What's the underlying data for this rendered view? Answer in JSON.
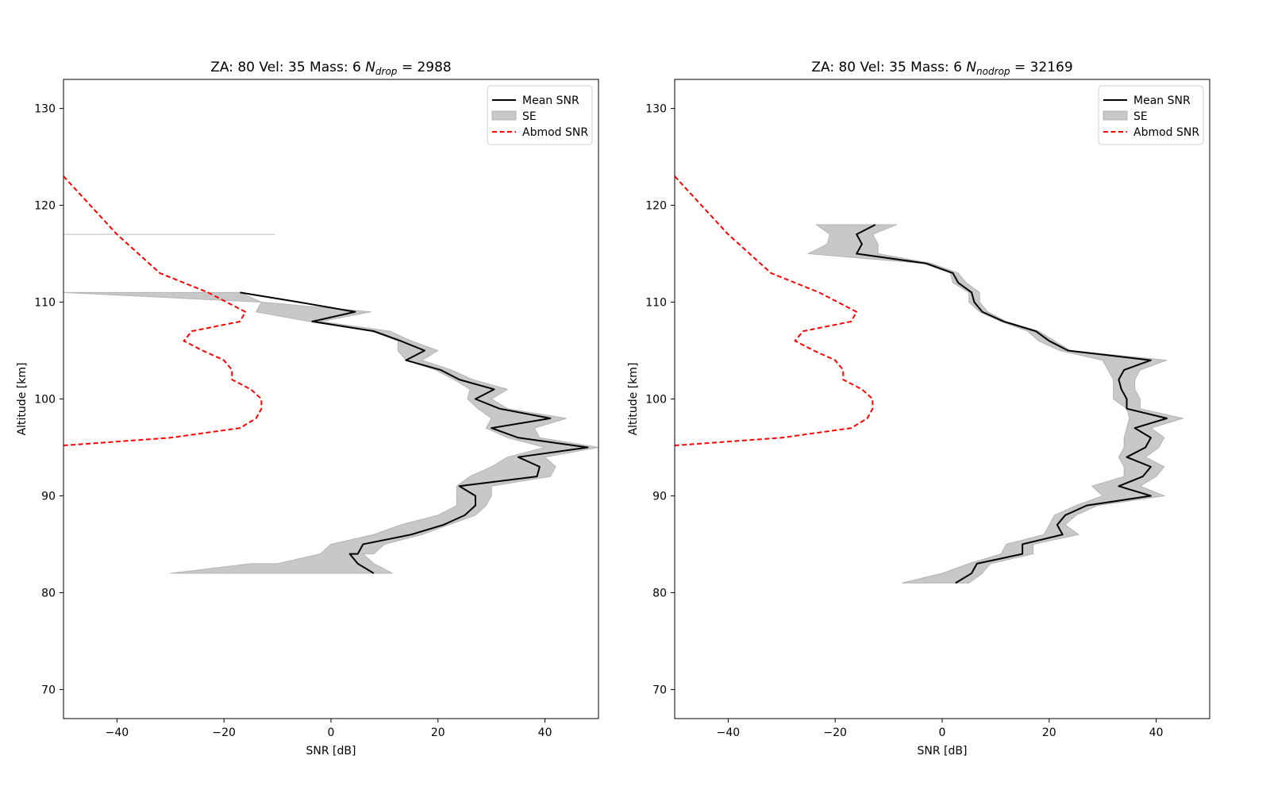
{
  "chart_data": [
    {
      "type": "line",
      "title": {
        "prefix": "ZA: 80 Vel: 35 Mass: 6 ",
        "sym": "N",
        "sub": "drop",
        "suffix": " = 2988"
      },
      "xlabel": "SNR [dB]",
      "ylabel": "Altitude [km]",
      "xlim": [
        -50,
        50
      ],
      "ylim": [
        67,
        133
      ],
      "xticks": [
        -40,
        -20,
        0,
        20,
        40
      ],
      "xtick_labels": [
        "−40",
        "−20",
        "0",
        "20",
        "40"
      ],
      "yticks": [
        70,
        80,
        90,
        100,
        110,
        120,
        130
      ],
      "ytick_labels": [
        "70",
        "80",
        "90",
        "100",
        "110",
        "120",
        "130"
      ],
      "legend": {
        "placement": "top-right",
        "entries": [
          "Mean SNR",
          "SE",
          "Abmod SNR"
        ]
      },
      "grid": false,
      "extra_hline": {
        "y": 117,
        "x": [
          -50,
          -10.5
        ],
        "color": "#c8c8c8"
      },
      "series": [
        {
          "name": "Mean SNR",
          "kind": "line",
          "color": "#000000",
          "points": [
            [
              -17,
              111
            ],
            [
              -6,
              110
            ],
            [
              4.5,
              109
            ],
            [
              -3.5,
              108
            ],
            [
              8,
              107
            ],
            [
              13,
              106
            ],
            [
              17.5,
              105
            ],
            [
              14,
              104
            ],
            [
              20.5,
              103
            ],
            [
              24,
              102
            ],
            [
              30.5,
              101
            ],
            [
              27,
              100
            ],
            [
              31.5,
              99
            ],
            [
              41,
              98
            ],
            [
              30,
              97
            ],
            [
              35,
              96
            ],
            [
              48,
              95
            ],
            [
              35,
              94
            ],
            [
              39,
              93
            ],
            [
              38.5,
              92
            ],
            [
              24,
              91
            ],
            [
              27,
              90
            ],
            [
              27,
              89
            ],
            [
              25,
              88
            ],
            [
              21,
              87
            ],
            [
              15,
              86
            ],
            [
              6,
              85
            ],
            [
              5,
              84
            ],
            [
              3.5,
              84
            ],
            [
              5,
              83
            ],
            [
              8,
              82
            ]
          ]
        },
        {
          "name": "SE",
          "kind": "band",
          "color": "#c8c8c8",
          "lower": [
            [
              -50,
              111
            ],
            [
              -13,
              110
            ],
            [
              -14,
              109
            ],
            [
              -4,
              108
            ],
            [
              7.5,
              107
            ],
            [
              12.5,
              106
            ],
            [
              12.5,
              105
            ],
            [
              14,
              104
            ],
            [
              19.5,
              103
            ],
            [
              23,
              102
            ],
            [
              26,
              101
            ],
            [
              25.5,
              100
            ],
            [
              27.5,
              99
            ],
            [
              30,
              98
            ],
            [
              29,
              97
            ],
            [
              33,
              96
            ],
            [
              40,
              95
            ],
            [
              33,
              94
            ],
            [
              30,
              93
            ],
            [
              26,
              92
            ],
            [
              23.5,
              91
            ],
            [
              23.5,
              90
            ],
            [
              23.5,
              89
            ],
            [
              20,
              88
            ],
            [
              13,
              87
            ],
            [
              8,
              86
            ],
            [
              0,
              85
            ],
            [
              -2,
              84
            ],
            [
              -10,
              83
            ],
            [
              -15,
              83
            ],
            [
              -30,
              82
            ]
          ],
          "upper": [
            [
              -17,
              111
            ],
            [
              -13,
              110
            ],
            [
              7.5,
              109
            ],
            [
              -2,
              108
            ],
            [
              11,
              107
            ],
            [
              15,
              106
            ],
            [
              20,
              105
            ],
            [
              17,
              104
            ],
            [
              22.5,
              103
            ],
            [
              26.5,
              102
            ],
            [
              33,
              101
            ],
            [
              30,
              100
            ],
            [
              33,
              99
            ],
            [
              44,
              98
            ],
            [
              38,
              97
            ],
            [
              39,
              96
            ],
            [
              50,
              95
            ],
            [
              40,
              94
            ],
            [
              42,
              93
            ],
            [
              41,
              92
            ],
            [
              30,
              91
            ],
            [
              30,
              90
            ],
            [
              29,
              89
            ],
            [
              27,
              88
            ],
            [
              22,
              87
            ],
            [
              17,
              86
            ],
            [
              10,
              85
            ],
            [
              8,
              84
            ],
            [
              6,
              84
            ],
            [
              8,
              83
            ],
            [
              11.5,
              82
            ]
          ]
        },
        {
          "name": "Abmod SNR",
          "kind": "line",
          "dashed": true,
          "color": "#ff0000",
          "points": [
            [
              -50,
              123
            ],
            [
              -40,
              117
            ],
            [
              -32,
              113
            ],
            [
              -23,
              111
            ],
            [
              -16,
              109
            ],
            [
              -17,
              108
            ],
            [
              -26,
              107
            ],
            [
              -27.5,
              106
            ],
            [
              -24,
              105
            ],
            [
              -20,
              104
            ],
            [
              -18.5,
              103
            ],
            [
              -18.5,
              102
            ],
            [
              -15,
              101
            ],
            [
              -13,
              100
            ],
            [
              -13,
              99
            ],
            [
              -14,
              98
            ],
            [
              -17,
              97
            ],
            [
              -30,
              96
            ],
            [
              -50,
              95.2
            ]
          ]
        }
      ]
    },
    {
      "type": "line",
      "title": {
        "prefix": "ZA: 80 Vel: 35 Mass: 6 ",
        "sym": "N",
        "sub": "nodrop",
        "suffix": " = 32169"
      },
      "xlabel": "SNR [dB]",
      "ylabel": "Altitude [km]",
      "xlim": [
        -50,
        50
      ],
      "ylim": [
        67,
        133
      ],
      "xticks": [
        -40,
        -20,
        0,
        20,
        40
      ],
      "xtick_labels": [
        "−40",
        "−20",
        "0",
        "20",
        "40"
      ],
      "yticks": [
        70,
        80,
        90,
        100,
        110,
        120,
        130
      ],
      "ytick_labels": [
        "70",
        "80",
        "90",
        "100",
        "110",
        "120",
        "130"
      ],
      "legend": {
        "placement": "top-right",
        "entries": [
          "Mean SNR",
          "SE",
          "Abmod SNR"
        ]
      },
      "grid": false,
      "series": [
        {
          "name": "Mean SNR",
          "kind": "line",
          "color": "#000000",
          "points": [
            [
              -12.5,
              118
            ],
            [
              -16,
              117
            ],
            [
              -15,
              116
            ],
            [
              -16,
              115
            ],
            [
              -3,
              114
            ],
            [
              2,
              113
            ],
            [
              3,
              112
            ],
            [
              5.5,
              111
            ],
            [
              6,
              110
            ],
            [
              7.5,
              109
            ],
            [
              11.5,
              108
            ],
            [
              17.5,
              107
            ],
            [
              20,
              106
            ],
            [
              23.5,
              105
            ],
            [
              39,
              104
            ],
            [
              34,
              103
            ],
            [
              33,
              102
            ],
            [
              33.5,
              101
            ],
            [
              34.5,
              100
            ],
            [
              34.5,
              99
            ],
            [
              42,
              98
            ],
            [
              36,
              97
            ],
            [
              39,
              96
            ],
            [
              38,
              95
            ],
            [
              34.5,
              94
            ],
            [
              39,
              93
            ],
            [
              37.5,
              92
            ],
            [
              33,
              91
            ],
            [
              39,
              90
            ],
            [
              27,
              89
            ],
            [
              23,
              88
            ],
            [
              21.5,
              87
            ],
            [
              22.5,
              86
            ],
            [
              15,
              85
            ],
            [
              15,
              84
            ],
            [
              6.5,
              83
            ],
            [
              5.5,
              82
            ],
            [
              2.5,
              81
            ]
          ]
        },
        {
          "name": "SE",
          "kind": "band",
          "color": "#c8c8c8",
          "lower": [
            [
              -23.5,
              118
            ],
            [
              -21,
              117
            ],
            [
              -21.5,
              116
            ],
            [
              -25,
              115
            ],
            [
              -3.5,
              114
            ],
            [
              1.5,
              113
            ],
            [
              2,
              112
            ],
            [
              5,
              111
            ],
            [
              5,
              110
            ],
            [
              7,
              109
            ],
            [
              11,
              108
            ],
            [
              16,
              107
            ],
            [
              18,
              106
            ],
            [
              22,
              105
            ],
            [
              30,
              104
            ],
            [
              31,
              103
            ],
            [
              32,
              102
            ],
            [
              32,
              101
            ],
            [
              32,
              100
            ],
            [
              34.5,
              99
            ],
            [
              35,
              98
            ],
            [
              34.5,
              97
            ],
            [
              34,
              96
            ],
            [
              34,
              95
            ],
            [
              33,
              94
            ],
            [
              34,
              93
            ],
            [
              34,
              92
            ],
            [
              28,
              91
            ],
            [
              30,
              90
            ],
            [
              25,
              89
            ],
            [
              21,
              88
            ],
            [
              20,
              87
            ],
            [
              19,
              86
            ],
            [
              12,
              85
            ],
            [
              11,
              84
            ],
            [
              5,
              83
            ],
            [
              0,
              82
            ],
            [
              -7.5,
              81
            ]
          ],
          "upper": [
            [
              -8.5,
              118
            ],
            [
              -13,
              117
            ],
            [
              -12,
              116
            ],
            [
              -12,
              115
            ],
            [
              -2,
              114
            ],
            [
              3,
              113
            ],
            [
              4.5,
              112
            ],
            [
              7,
              111
            ],
            [
              7,
              110
            ],
            [
              8.5,
              109
            ],
            [
              12,
              108
            ],
            [
              18,
              107
            ],
            [
              21,
              106
            ],
            [
              24,
              105
            ],
            [
              42,
              104
            ],
            [
              37,
              103
            ],
            [
              36,
              102
            ],
            [
              36,
              101
            ],
            [
              37,
              100
            ],
            [
              37,
              99
            ],
            [
              45,
              98
            ],
            [
              39,
              97
            ],
            [
              41.5,
              96
            ],
            [
              40.5,
              95
            ],
            [
              38,
              94
            ],
            [
              41.5,
              93
            ],
            [
              40,
              92
            ],
            [
              37,
              91
            ],
            [
              41.5,
              90
            ],
            [
              29,
              89
            ],
            [
              25,
              88
            ],
            [
              23,
              87
            ],
            [
              25.5,
              86
            ],
            [
              17,
              85
            ],
            [
              17,
              84
            ],
            [
              9,
              83
            ],
            [
              7.5,
              82
            ],
            [
              5,
              81
            ]
          ]
        },
        {
          "name": "Abmod SNR",
          "kind": "line",
          "dashed": true,
          "color": "#ff0000",
          "points": [
            [
              -50,
              123
            ],
            [
              -40,
              117
            ],
            [
              -32,
              113
            ],
            [
              -23,
              111
            ],
            [
              -16,
              109
            ],
            [
              -17,
              108
            ],
            [
              -26,
              107
            ],
            [
              -27.5,
              106
            ],
            [
              -24,
              105
            ],
            [
              -20,
              104
            ],
            [
              -18.5,
              103
            ],
            [
              -18.5,
              102
            ],
            [
              -15,
              101
            ],
            [
              -13,
              100
            ],
            [
              -13,
              99
            ],
            [
              -14,
              98
            ],
            [
              -17,
              97
            ],
            [
              -30,
              96
            ],
            [
              -50,
              95.2
            ]
          ]
        }
      ]
    }
  ]
}
